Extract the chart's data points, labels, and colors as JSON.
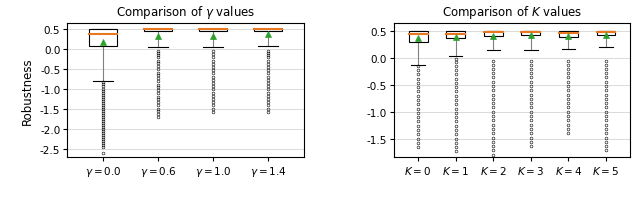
{
  "left_title": "Comparison of $\\gamma$ values",
  "right_title": "Comparison of $K$ values",
  "ylabel": "Robustness",
  "left_xlabels": [
    "$\\gamma=0.0$",
    "$\\gamma=0.6$",
    "$\\gamma=1.0$",
    "$\\gamma=1.4$"
  ],
  "right_xlabels": [
    "$K=0$",
    "$K=1$",
    "$K=2$",
    "$K=3$",
    "$K=4$",
    "$K=5$"
  ],
  "left_ylim": [
    -2.7,
    0.65
  ],
  "right_ylim": [
    -1.85,
    0.65
  ],
  "left_yticks": [
    0.5,
    0.0,
    -0.5,
    -1.0,
    -1.5,
    -2.0,
    -2.5
  ],
  "right_yticks": [
    0.5,
    0.0,
    -0.5,
    -1.0,
    -1.5
  ],
  "median_color": "#E87722",
  "mean_marker_color": "#2CA02C",
  "left_boxes": [
    {
      "q1": 0.08,
      "median": 0.38,
      "q3": 0.5,
      "whisker_low": -0.78,
      "whisker_high": 0.5,
      "mean": 0.18,
      "fliers": [
        -0.82,
        -0.87,
        -0.92,
        -0.98,
        -1.05,
        -1.1,
        -1.15,
        -1.2,
        -1.25,
        -1.3,
        -1.35,
        -1.4,
        -1.45,
        -1.5,
        -1.55,
        -1.6,
        -1.65,
        -1.7,
        -1.75,
        -1.8,
        -1.85,
        -1.9,
        -1.95,
        -2.0,
        -2.05,
        -2.1,
        -2.15,
        -2.2,
        -2.25,
        -2.3,
        -2.35,
        -2.4,
        -2.45,
        -2.6
      ]
    },
    {
      "q1": 0.45,
      "median": 0.5,
      "q3": 0.5,
      "whisker_low": 0.05,
      "whisker_high": 0.5,
      "mean": 0.33,
      "fliers": [
        -0.05,
        -0.1,
        -0.15,
        -0.2,
        -0.28,
        -0.35,
        -0.42,
        -0.5,
        -0.58,
        -0.65,
        -0.72,
        -0.8,
        -0.88,
        -0.95,
        -1.02,
        -1.1,
        -1.18,
        -1.25,
        -1.32,
        -1.4,
        -1.48,
        -1.55,
        -1.62,
        -1.7
      ]
    },
    {
      "q1": 0.45,
      "median": 0.5,
      "q3": 0.5,
      "whisker_low": 0.05,
      "whisker_high": 0.5,
      "mean": 0.33,
      "fliers": [
        -0.05,
        -0.12,
        -0.2,
        -0.28,
        -0.36,
        -0.44,
        -0.52,
        -0.6,
        -0.68,
        -0.76,
        -0.84,
        -0.92,
        -1.0,
        -1.08,
        -1.16,
        -1.24,
        -1.32,
        -1.4,
        -1.48,
        -1.56
      ]
    },
    {
      "q1": 0.45,
      "median": 0.5,
      "q3": 0.5,
      "whisker_low": 0.08,
      "whisker_high": 0.5,
      "mean": 0.38,
      "fliers": [
        -0.05,
        -0.1,
        -0.15,
        -0.2,
        -0.28,
        -0.36,
        -0.44,
        -0.52,
        -0.6,
        -0.68,
        -0.76,
        -0.84,
        -0.92,
        -1.0,
        -1.08,
        -1.16,
        -1.24,
        -1.32,
        -1.4,
        -1.48,
        -1.56
      ]
    }
  ],
  "right_boxes": [
    {
      "q1": 0.3,
      "median": 0.46,
      "q3": 0.5,
      "whisker_low": -0.12,
      "whisker_high": 0.5,
      "mean": 0.38,
      "fliers": [
        -0.15,
        -0.22,
        -0.3,
        -0.38,
        -0.46,
        -0.54,
        -0.62,
        -0.7,
        -0.78,
        -0.86,
        -0.94,
        -1.02,
        -1.1,
        -1.18,
        -1.26,
        -1.34,
        -1.42,
        -1.5,
        -1.58,
        -1.66
      ]
    },
    {
      "q1": 0.38,
      "median": 0.46,
      "q3": 0.5,
      "whisker_low": 0.05,
      "whisker_high": 0.5,
      "mean": 0.4,
      "fliers": [
        -0.02,
        -0.08,
        -0.15,
        -0.22,
        -0.3,
        -0.38,
        -0.46,
        -0.54,
        -0.62,
        -0.7,
        -0.78,
        -0.86,
        -0.94,
        -1.02,
        -1.1,
        -1.18,
        -1.26,
        -1.34,
        -1.42,
        -1.5,
        -1.58,
        -1.66,
        -1.74
      ]
    },
    {
      "q1": 0.42,
      "median": 0.48,
      "q3": 0.5,
      "whisker_low": 0.15,
      "whisker_high": 0.5,
      "mean": 0.42,
      "fliers": [
        -0.05,
        -0.12,
        -0.2,
        -0.28,
        -0.36,
        -0.44,
        -0.52,
        -0.6,
        -0.68,
        -0.76,
        -0.84,
        -0.92,
        -1.0,
        -1.08,
        -1.16,
        -1.24,
        -1.32,
        -1.4,
        -1.48,
        -1.56,
        -1.64,
        -1.72,
        -1.8
      ]
    },
    {
      "q1": 0.43,
      "median": 0.48,
      "q3": 0.5,
      "whisker_low": 0.15,
      "whisker_high": 0.5,
      "mean": 0.43,
      "fliers": [
        -0.05,
        -0.12,
        -0.2,
        -0.28,
        -0.36,
        -0.44,
        -0.52,
        -0.6,
        -0.68,
        -0.76,
        -0.84,
        -0.92,
        -1.0,
        -1.08,
        -1.16,
        -1.24,
        -1.32,
        -1.4,
        -1.48,
        -1.56,
        -1.64
      ]
    },
    {
      "q1": 0.4,
      "median": 0.47,
      "q3": 0.5,
      "whisker_low": 0.18,
      "whisker_high": 0.5,
      "mean": 0.42,
      "fliers": [
        -0.05,
        -0.12,
        -0.2,
        -0.28,
        -0.36,
        -0.44,
        -0.52,
        -0.6,
        -0.68,
        -0.76,
        -0.84,
        -0.92,
        -1.0,
        -1.08,
        -1.16,
        -1.24,
        -1.32,
        -1.4
      ]
    },
    {
      "q1": 0.43,
      "median": 0.48,
      "q3": 0.5,
      "whisker_low": 0.2,
      "whisker_high": 0.5,
      "mean": 0.44,
      "fliers": [
        -0.05,
        -0.12,
        -0.2,
        -0.28,
        -0.36,
        -0.44,
        -0.52,
        -0.6,
        -0.68,
        -0.76,
        -0.84,
        -0.92,
        -1.0,
        -1.08,
        -1.16,
        -1.24,
        -1.32,
        -1.4,
        -1.48,
        -1.56,
        -1.64,
        -1.72
      ]
    }
  ]
}
